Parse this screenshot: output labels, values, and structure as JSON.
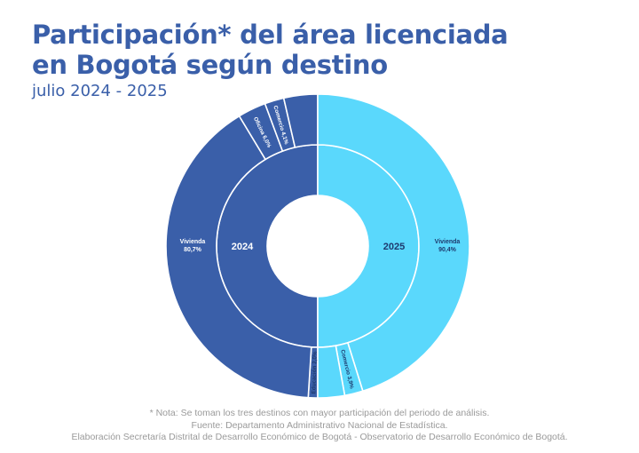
{
  "header": {
    "title_line1": "Participación* del área licenciada",
    "title_line2": "en Bogotá según destino",
    "subtitle": "julio 2024 - 2025"
  },
  "chart_data": {
    "type": "donut",
    "rings": [
      {
        "name": "2024",
        "color": "#3a5fa9",
        "slices": [
          {
            "label": "Vivienda",
            "value_label": "80,7%",
            "value": 80.7
          },
          {
            "label": "Oficina",
            "value_label": "6,0%",
            "value": 6.0
          },
          {
            "label": "Comercio",
            "value_label": "4,1%",
            "value": 4.1
          },
          {
            "label": "Educación",
            "value_label": "2,0%",
            "value": 2.0
          }
        ]
      },
      {
        "name": "2025",
        "color": "#5ad8fc",
        "slices": [
          {
            "label": "Vivienda",
            "value_label": "90,4%",
            "value": 90.4
          },
          {
            "label": "Comercio",
            "value_label": "3,9%",
            "value": 3.9
          }
        ]
      }
    ]
  },
  "footer": {
    "note": "* Nota: Se toman los tres destinos con mayor participación del periodo de análisis.",
    "source": "Fuente: Departamento Administrativo Nacional de Estadística.",
    "credit": "Elaboración Secretaría Distrital de Desarrollo Económico de Bogotá - Observatorio de Desarrollo Económico de Bogotá."
  }
}
